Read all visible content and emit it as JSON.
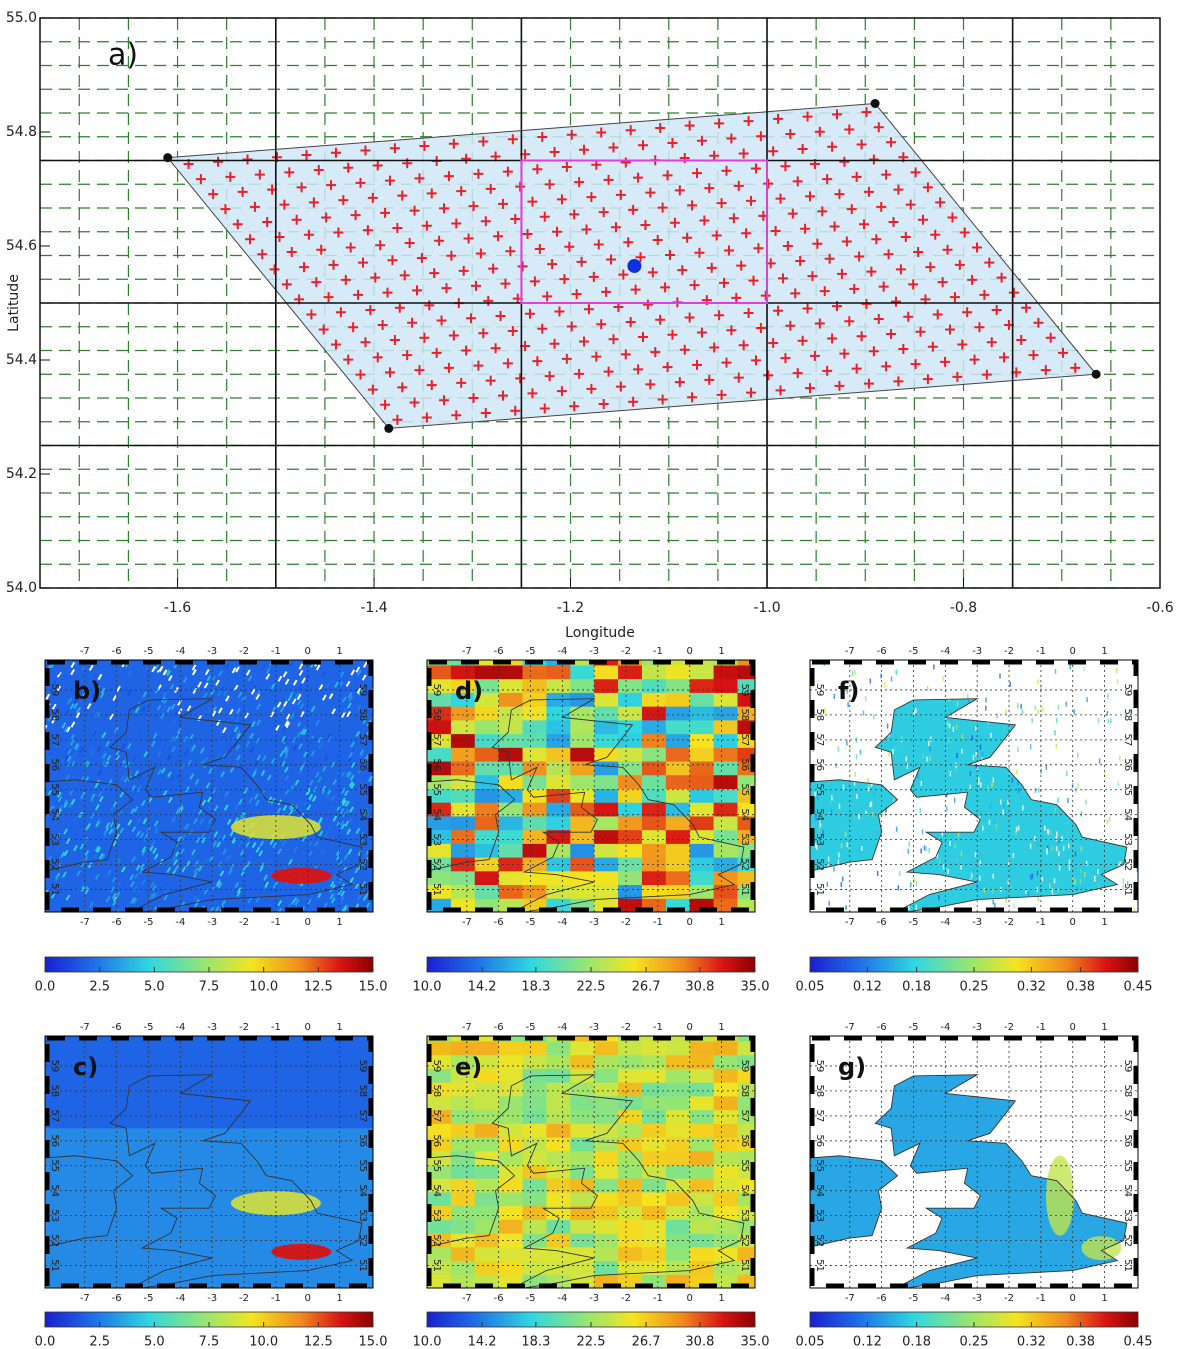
{
  "chart_data": [
    {
      "type": "footprint",
      "label": "a)",
      "x_label": "Longitude",
      "y_label": "Latitude",
      "xlim": [
        -1.74,
        -0.6
      ],
      "ylim": [
        54,
        55
      ],
      "xticks": [
        -1.6,
        -1.4,
        -1.2,
        {
          "value": -1,
          "label": "-1.0"
        },
        -0.8,
        -0.6
      ],
      "yticks": [
        {
          "value": 54,
          "label": "54.0"
        },
        54.2,
        54.4,
        54.6,
        54.8,
        {
          "value": 55,
          "label": "55.0"
        }
      ],
      "grid_lon": [
        -1.5,
        -1.25,
        -1,
        -0.75
      ],
      "grid_lat": [
        54.25,
        54.5,
        54.75
      ],
      "box": {
        "lon": [
          -1.25,
          -1
        ],
        "lat": [
          54.5,
          54.75
        ]
      },
      "corners": {
        "lon": [
          -1.61,
          -0.89,
          -0.665,
          -1.385
        ],
        "lat": [
          54.755,
          54.85,
          54.375,
          54.28
        ]
      },
      "center": {
        "lon": -1.135,
        "lat": 54.565
      }
    },
    {
      "type": "map",
      "label": "b)",
      "style": "satellite",
      "lonlim": [
        -8.25,
        2.05
      ],
      "latlim": [
        50.1,
        60.2
      ],
      "lonticks": [
        -7,
        -6,
        -5,
        -4,
        -3,
        -2,
        -1,
        0,
        1
      ],
      "latticks": [
        51,
        52,
        53,
        54,
        55,
        56,
        57,
        58,
        59
      ],
      "colorbar": {
        "lim": [
          0,
          15
        ],
        "ticks": [
          {
            "value": 0,
            "label": "0.0"
          },
          2.5,
          {
            "value": 5,
            "label": "5.0"
          },
          7.5,
          {
            "value": 10,
            "label": "10.0"
          },
          12.5,
          {
            "value": 15,
            "label": "15.0"
          }
        ]
      }
    },
    {
      "type": "map",
      "label": "c)",
      "style": "model",
      "lonlim": [
        -8.25,
        2.05
      ],
      "latlim": [
        50.1,
        60.2
      ],
      "lonticks": [
        -7,
        -6,
        -5,
        -4,
        -3,
        -2,
        -1,
        0,
        1
      ],
      "latticks": [
        51,
        52,
        53,
        54,
        55,
        56,
        57,
        58,
        59
      ],
      "colorbar": {
        "lim": [
          0,
          15
        ],
        "ticks": [
          {
            "value": 0,
            "label": "0.0"
          },
          2.5,
          {
            "value": 5,
            "label": "5.0"
          },
          7.5,
          {
            "value": 10,
            "label": "10.0"
          },
          12.5,
          {
            "value": 15,
            "label": "15.0"
          }
        ]
      }
    },
    {
      "type": "map",
      "label": "d)",
      "style": "mosaic",
      "lonlim": [
        -8.25,
        2.05
      ],
      "latlim": [
        50.1,
        60.2
      ],
      "lonticks": [
        -7,
        -6,
        -5,
        -4,
        -3,
        -2,
        -1,
        0,
        1
      ],
      "latticks": [
        51,
        52,
        53,
        54,
        55,
        56,
        57,
        58,
        59
      ],
      "colorbar": {
        "lim": [
          10,
          35
        ],
        "ticks": [
          {
            "value": 10,
            "label": "10.0"
          },
          14.2,
          18.3,
          22.5,
          26.7,
          30.8,
          {
            "value": 35,
            "label": "35.0"
          }
        ]
      }
    },
    {
      "type": "map",
      "label": "e)",
      "style": "mosaic-smooth",
      "lonlim": [
        -8.25,
        2.05
      ],
      "latlim": [
        50.1,
        60.2
      ],
      "lonticks": [
        -7,
        -6,
        -5,
        -4,
        -3,
        -2,
        -1,
        0,
        1
      ],
      "latticks": [
        51,
        52,
        53,
        54,
        55,
        56,
        57,
        58,
        59
      ],
      "colorbar": {
        "lim": [
          10,
          35
        ],
        "ticks": [
          {
            "value": 10,
            "label": "10.0"
          },
          14.2,
          18.3,
          22.5,
          26.7,
          30.8,
          {
            "value": 35,
            "label": "35.0"
          }
        ]
      }
    },
    {
      "type": "map",
      "label": "f)",
      "style": "land-noisy",
      "lonlim": [
        -8.25,
        2.05
      ],
      "latlim": [
        50.1,
        60.2
      ],
      "lonticks": [
        -7,
        -6,
        -5,
        -4,
        -3,
        -2,
        -1,
        0,
        1
      ],
      "latticks": [
        51,
        52,
        53,
        54,
        55,
        56,
        57,
        58,
        59
      ],
      "colorbar": {
        "lim": [
          0.05,
          0.45
        ],
        "ticks": [
          0.05,
          0.12,
          0.18,
          0.25,
          0.32,
          0.38,
          0.45
        ]
      }
    },
    {
      "type": "map",
      "label": "g)",
      "style": "land-smooth",
      "lonlim": [
        -8.25,
        2.05
      ],
      "latlim": [
        50.1,
        60.2
      ],
      "lonticks": [
        -7,
        -6,
        -5,
        -4,
        -3,
        -2,
        -1,
        0,
        1
      ],
      "latticks": [
        51,
        52,
        53,
        54,
        55,
        56,
        57,
        58,
        59
      ],
      "colorbar": {
        "lim": [
          0.05,
          0.45
        ],
        "ticks": [
          0.05,
          0.12,
          0.18,
          0.25,
          0.32,
          0.38,
          0.45
        ]
      }
    }
  ]
}
